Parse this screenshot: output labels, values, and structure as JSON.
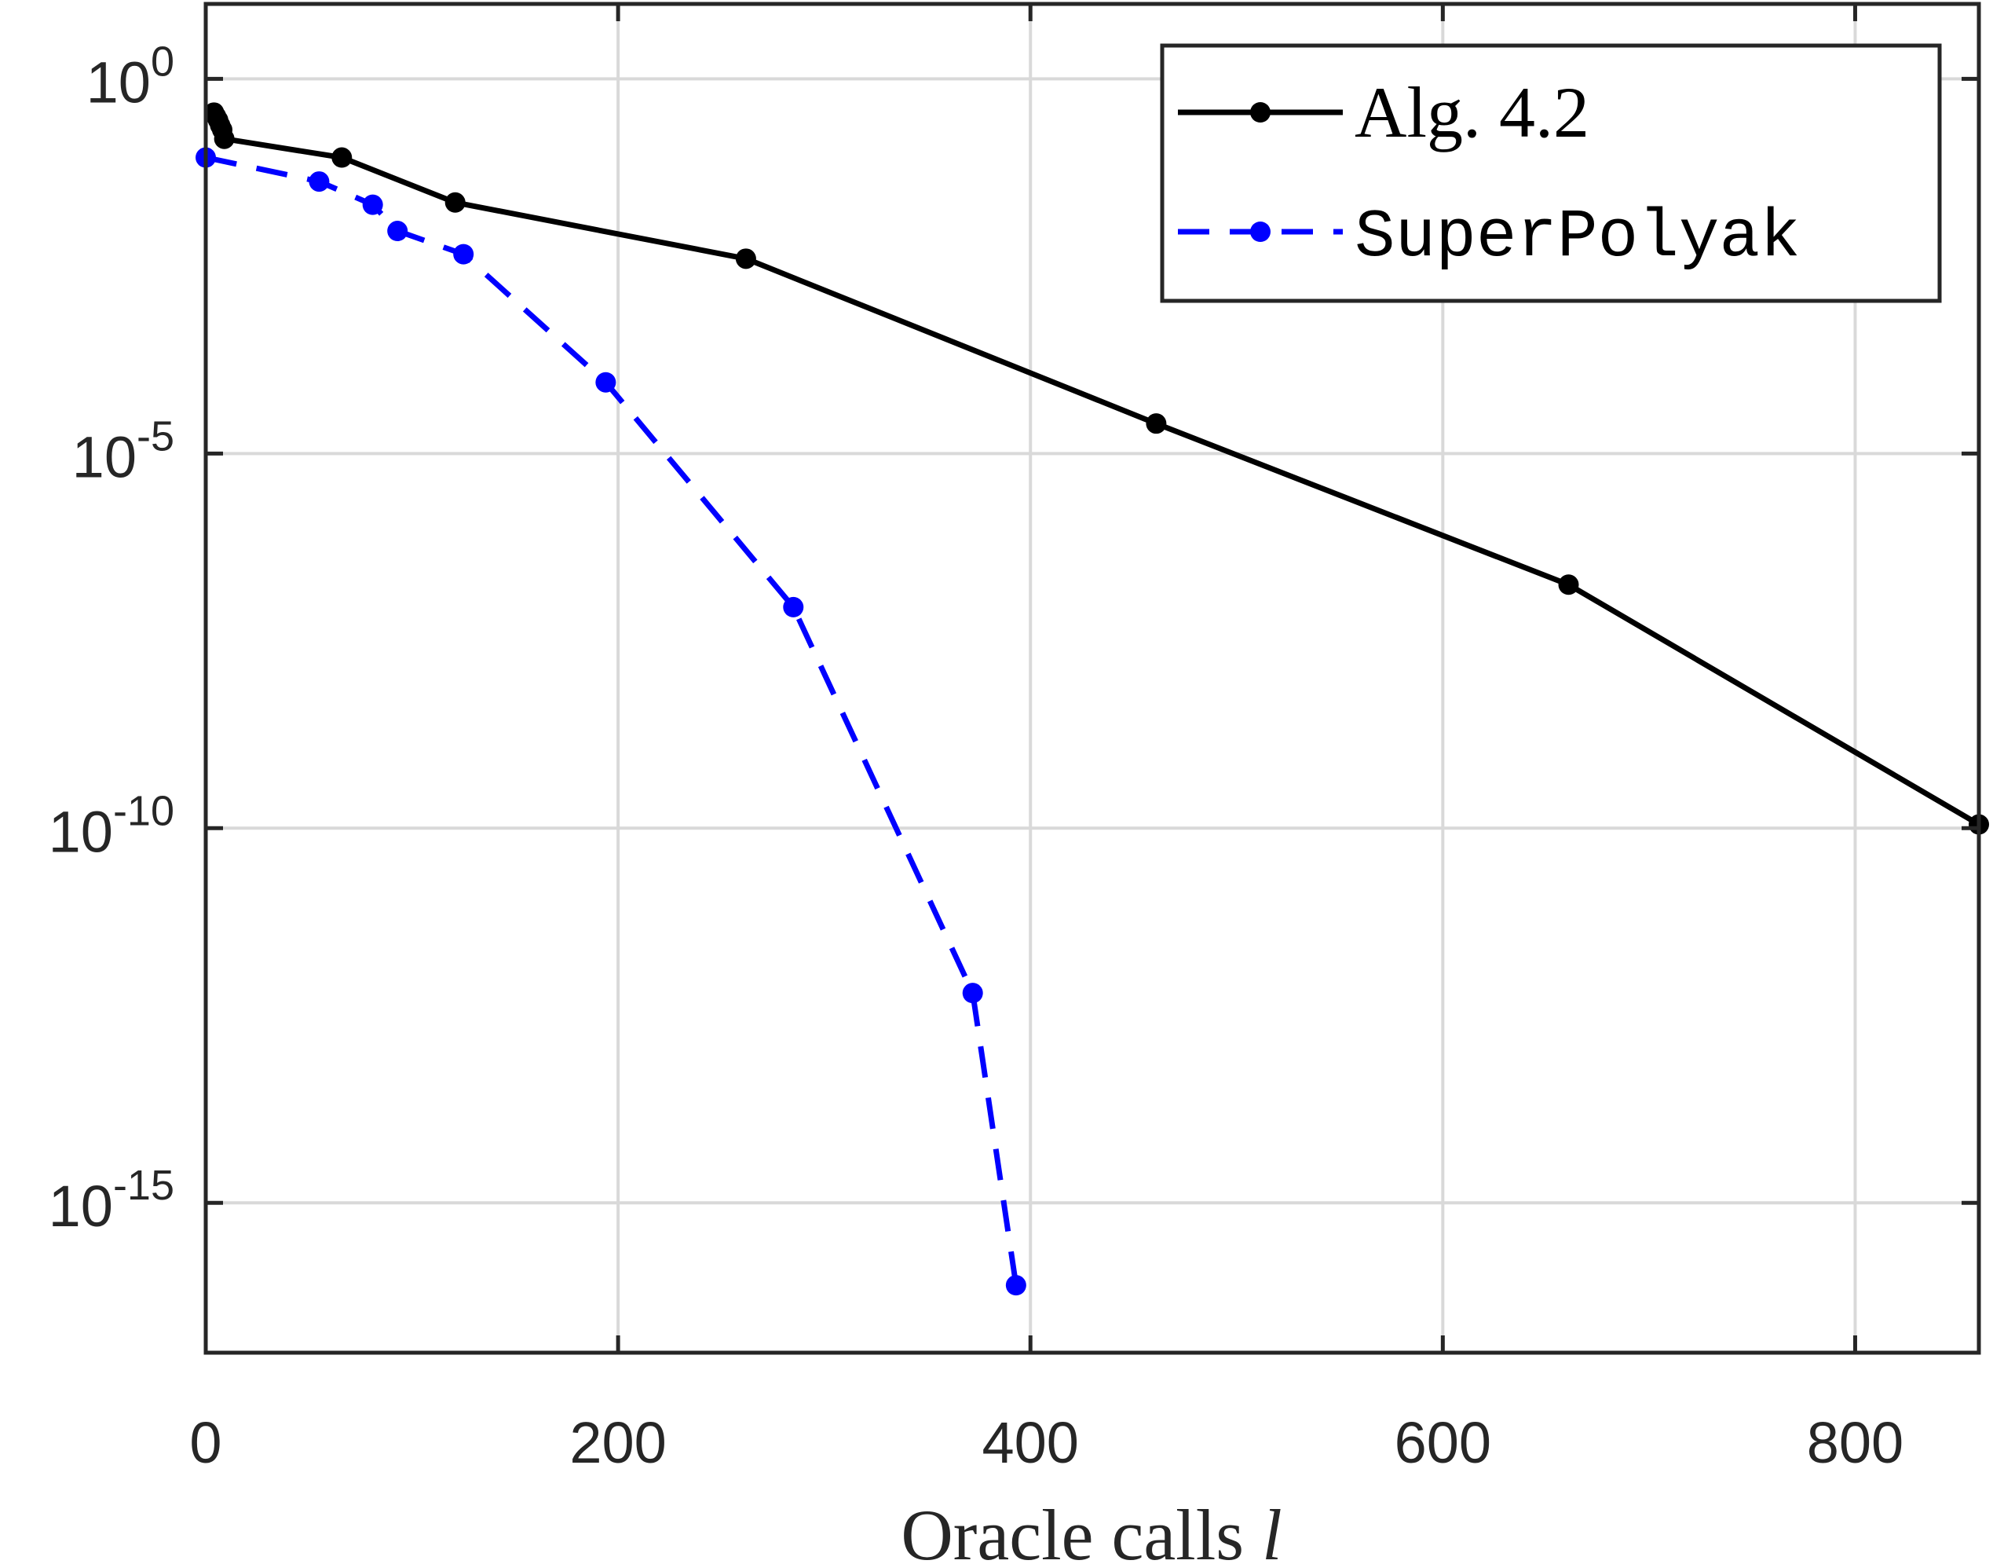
{
  "chart_data": {
    "type": "line",
    "xlabel": "Oracle calls",
    "xlabel_var": "l",
    "yscale": "log",
    "xlim": [
      0,
      860
    ],
    "ylim_exp": [
      -17,
      1
    ],
    "xticks": [
      0,
      200,
      400,
      600,
      800
    ],
    "xtick_labels": [
      "0",
      "200",
      "400",
      "600",
      "800"
    ],
    "yticks_exp": [
      0,
      -5,
      -10,
      -15
    ],
    "ytick_base": "10",
    "ytick_exps": [
      "0",
      "-5",
      "-10",
      "-15"
    ],
    "grid": true,
    "legend_position": "top-right",
    "series": [
      {
        "name": "Alg. 4.2",
        "color": "#000000",
        "style": "solid",
        "x": [
          4,
          5,
          6,
          7,
          8,
          9,
          66,
          121,
          262,
          461,
          661,
          860
        ],
        "y_log10": [
          -0.45,
          -0.5,
          -0.55,
          -0.62,
          -0.68,
          -0.8,
          -1.05,
          -1.65,
          -2.4,
          -4.6,
          -6.75,
          -9.95
        ]
      },
      {
        "name": "SuperPolyak",
        "color": "#0000ff",
        "style": "dashed",
        "x": [
          0,
          55,
          81,
          93,
          125,
          194,
          285,
          372,
          393
        ],
        "y_log10": [
          -1.05,
          -1.37,
          -1.68,
          -2.03,
          -2.34,
          -4.05,
          -7.05,
          -12.2,
          -16.1
        ]
      }
    ]
  }
}
